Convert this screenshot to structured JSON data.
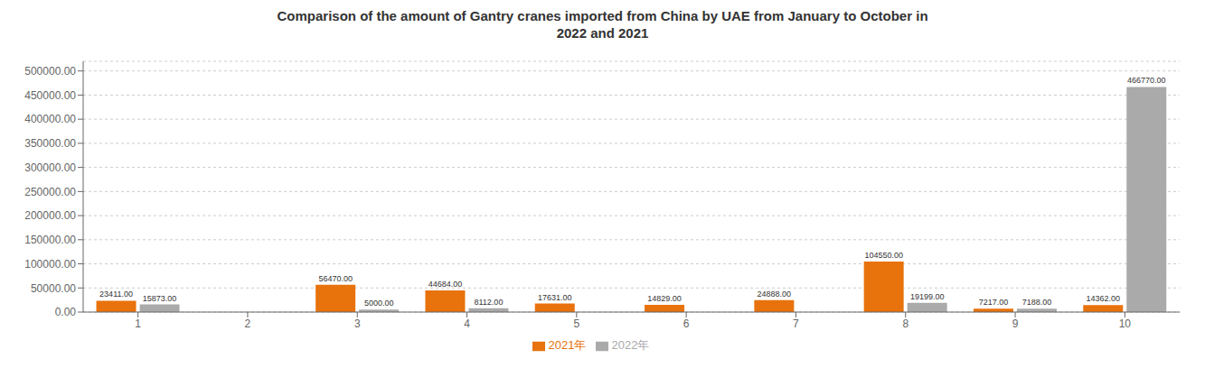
{
  "chart_data": {
    "type": "bar",
    "title": "Comparison of the amount of Gantry cranes imported from China by UAE from January to October in\n2022 and 2021",
    "categories": [
      "1",
      "2",
      "3",
      "4",
      "5",
      "6",
      "7",
      "8",
      "9",
      "10"
    ],
    "series": [
      {
        "name": "2021年",
        "color": "#E8720C",
        "values": [
          23411,
          0,
          56470,
          44684,
          17631,
          14829,
          24888,
          104550,
          7217,
          14362
        ],
        "value_labels": [
          "23411.00",
          null,
          "56470.00",
          "44684.00",
          "17631.00",
          "14829.00",
          "24888.00",
          "104550.00",
          "7217.00",
          "14362.00"
        ]
      },
      {
        "name": "2022年",
        "color": "#AAAAAA",
        "values": [
          15873,
          0,
          5000,
          8112,
          0,
          0,
          0,
          19199,
          7188,
          466770
        ],
        "value_labels": [
          "15873.00",
          null,
          "5000.00",
          "8112.00",
          null,
          null,
          null,
          "19199.00",
          "7188.00",
          "466770.00"
        ]
      }
    ],
    "ylim": [
      0,
      520000
    ],
    "yticks": [
      {
        "value": 0,
        "label": "0.00"
      },
      {
        "value": 50000,
        "label": "50000.00"
      },
      {
        "value": 100000,
        "label": "100000.00"
      },
      {
        "value": 150000,
        "label": "150000.00"
      },
      {
        "value": 200000,
        "label": "200000.00"
      },
      {
        "value": 250000,
        "label": "250000.00"
      },
      {
        "value": 300000,
        "label": "300000.00"
      },
      {
        "value": 350000,
        "label": "350000.00"
      },
      {
        "value": 400000,
        "label": "400000.00"
      },
      {
        "value": 450000,
        "label": "450000.00"
      },
      {
        "value": 500000,
        "label": "500000.00"
      }
    ],
    "grid": true,
    "legend": "bottom",
    "data_labels": true
  }
}
